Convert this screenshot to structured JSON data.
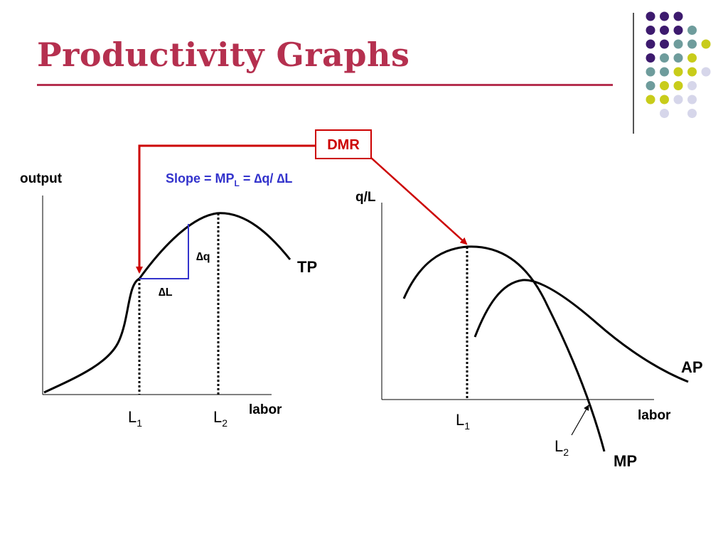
{
  "title": "Productivity Graphs",
  "dmr_label": "DMR",
  "slope": {
    "prefix": "Slope = MP",
    "sub": "L",
    "suffix": " = ∆q/ ∆L"
  },
  "left_graph": {
    "y_label": "output",
    "x_label": "labor",
    "curve_label": "TP",
    "delta_q": "∆q",
    "delta_l": "∆L",
    "l1": {
      "base": "L",
      "sub": "1"
    },
    "l2": {
      "base": "L",
      "sub": "2"
    }
  },
  "right_graph": {
    "y_label": "q/L",
    "x_label": "labor",
    "ap_label": "AP",
    "mp_label": "MP",
    "l1": {
      "base": "L",
      "sub": "1"
    },
    "l2": {
      "base": "L",
      "sub": "2"
    }
  },
  "colors": {
    "title": "#b5304f",
    "arrow": "#cc0000",
    "slope": "#3333cc",
    "curve": "#000000",
    "dot_purple": "#3d1a6e",
    "dot_teal": "#6e9c9c",
    "dot_yellow": "#c8cc1a",
    "dot_lavender": "#d6d6ea"
  },
  "dot_grid": [
    [
      "purple",
      "purple",
      "purple",
      null,
      null
    ],
    [
      "purple",
      "purple",
      "purple",
      "teal",
      null
    ],
    [
      "purple",
      "purple",
      "teal",
      "teal",
      "yellow"
    ],
    [
      "purple",
      "teal",
      "teal",
      "yellow",
      null
    ],
    [
      "teal",
      "teal",
      "yellow",
      "yellow",
      "lavender"
    ],
    [
      "teal",
      "yellow",
      "yellow",
      "lavender",
      null
    ],
    [
      "yellow",
      "yellow",
      "lavender",
      "lavender",
      null
    ],
    [
      null,
      "lavender",
      null,
      "lavender",
      null
    ]
  ]
}
